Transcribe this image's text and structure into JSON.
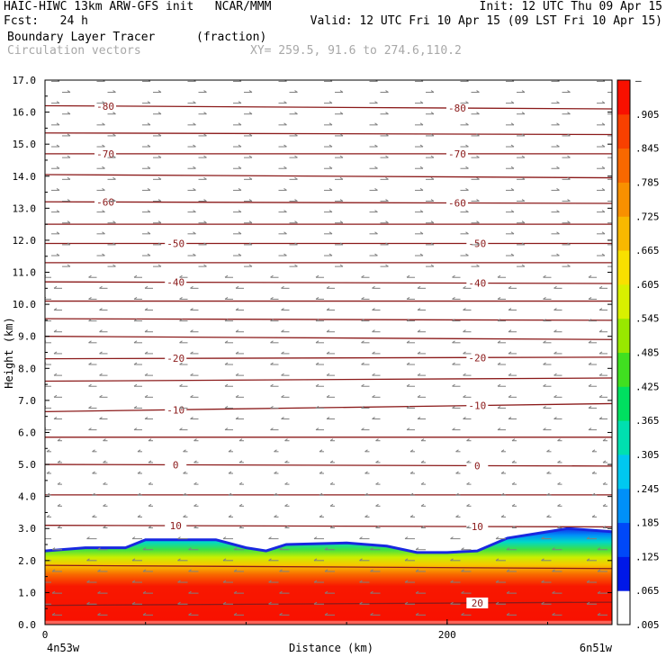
{
  "header": {
    "line1_left": "HAIC-HIWC 13km ARW-GFS init   NCAR/MMM",
    "line1_right": "Init: 12 UTC Thu 09 Apr 15",
    "line2_left": "Fcst:   24 h",
    "line2_right": "Valid: 12 UTC Fri 10 Apr 15 (09 LST Fri 10 Apr 15)",
    "field_name": "Boundary Layer Tracer",
    "field_unit": "(fraction)",
    "overlay_name": "Circulation vectors",
    "xy_text": "XY= 259.5, 91.6 to 274.6,110.2"
  },
  "colors": {
    "contour": "#8b1a1a",
    "vector": "#808080",
    "colorbar": [
      "#ffffff",
      "#0018e8",
      "#0048f8",
      "#0090f8",
      "#00c8f0",
      "#00e0b0",
      "#00e060",
      "#40e020",
      "#98e800",
      "#d8f000",
      "#f8e000",
      "#f8b800",
      "#f89000",
      "#f86800",
      "#f84000",
      "#f81000"
    ]
  },
  "chart_data": {
    "type": "heatmap",
    "title": "Boundary Layer Tracer (fraction)",
    "xlabel": "Distance (km)",
    "ylabel": "Height (km)",
    "xlim": [
      0,
      282
    ],
    "ylim": [
      0,
      17
    ],
    "x_ticks": [
      {
        "v": 0,
        "label": "0"
      },
      {
        "v": 200,
        "label": "200"
      }
    ],
    "x_end_labels": {
      "left": "4n53w",
      "right": "6n51w"
    },
    "y_ticks": [
      {
        "v": 0,
        "label": "0.0"
      },
      {
        "v": 1,
        "label": "1.0"
      },
      {
        "v": 2,
        "label": "2.0"
      },
      {
        "v": 3,
        "label": "3.0"
      },
      {
        "v": 4,
        "label": "4.0"
      },
      {
        "v": 5,
        "label": "5.0"
      },
      {
        "v": 6,
        "label": "6.0"
      },
      {
        "v": 7,
        "label": "7.0"
      },
      {
        "v": 8,
        "label": "8.0"
      },
      {
        "v": 9,
        "label": "9.0"
      },
      {
        "v": 10,
        "label": "10.0"
      },
      {
        "v": 11,
        "label": "11.0"
      },
      {
        "v": 12,
        "label": "12.0"
      },
      {
        "v": 13,
        "label": "13.0"
      },
      {
        "v": 14,
        "label": "14.0"
      },
      {
        "v": 15,
        "label": "15.0"
      },
      {
        "v": 16,
        "label": "16.0"
      },
      {
        "v": 17,
        "label": "17.0"
      }
    ],
    "colorbar_labels": [
      ".005",
      ".065",
      ".125",
      ".185",
      ".245",
      ".305",
      ".365",
      ".425",
      ".485",
      ".545",
      ".605",
      ".665",
      ".725",
      ".785",
      ".845",
      ".905",
      "–"
    ],
    "boundary_layer_top_km": [
      {
        "x": 0,
        "y": 2.3
      },
      {
        "x": 20,
        "y": 2.4
      },
      {
        "x": 40,
        "y": 2.4
      },
      {
        "x": 50,
        "y": 2.65
      },
      {
        "x": 85,
        "y": 2.65
      },
      {
        "x": 100,
        "y": 2.4
      },
      {
        "x": 110,
        "y": 2.3
      },
      {
        "x": 120,
        "y": 2.5
      },
      {
        "x": 150,
        "y": 2.55
      },
      {
        "x": 170,
        "y": 2.45
      },
      {
        "x": 185,
        "y": 2.25
      },
      {
        "x": 200,
        "y": 2.25
      },
      {
        "x": 215,
        "y": 2.3
      },
      {
        "x": 230,
        "y": 2.7
      },
      {
        "x": 245,
        "y": 2.85
      },
      {
        "x": 260,
        "y": 3.0
      },
      {
        "x": 282,
        "y": 2.9
      }
    ],
    "isotherms": [
      {
        "label": "-80",
        "left": 16.2,
        "right": 16.1,
        "label_x": [
          30,
          205
        ]
      },
      {
        "label": "",
        "left": 15.35,
        "right": 15.3
      },
      {
        "label": "-70",
        "left": 14.7,
        "right": 14.7,
        "label_x": [
          30,
          205
        ]
      },
      {
        "label": "",
        "left": 14.05,
        "right": 13.95
      },
      {
        "label": "-60",
        "left": 13.2,
        "right": 13.15,
        "label_x": [
          30,
          205
        ]
      },
      {
        "label": "",
        "left": 12.5,
        "right": 12.5
      },
      {
        "label": "-50",
        "left": 11.9,
        "right": 11.9,
        "label_x": [
          65,
          215
        ]
      },
      {
        "label": "",
        "left": 11.3,
        "right": 11.3
      },
      {
        "label": "-40",
        "left": 10.7,
        "right": 10.65,
        "label_x": [
          65,
          215
        ]
      },
      {
        "label": "",
        "left": 10.1,
        "right": 10.1
      },
      {
        "label": "",
        "left": 9.55,
        "right": 9.5
      },
      {
        "label": "",
        "left": 9.0,
        "right": 8.9
      },
      {
        "label": "-20",
        "left": 8.3,
        "right": 8.35,
        "label_x": [
          65,
          215
        ]
      },
      {
        "label": "",
        "left": 7.6,
        "right": 7.7
      },
      {
        "label": "-10",
        "left": 6.65,
        "right": 6.9,
        "label_x": [
          65,
          215
        ]
      },
      {
        "label": "",
        "left": 5.85,
        "right": 5.85
      },
      {
        "label": "0",
        "left": 5.0,
        "right": 4.95,
        "label_x": [
          65,
          215
        ]
      },
      {
        "label": "",
        "left": 4.05,
        "right": 4.05
      },
      {
        "label": "10",
        "left": 3.1,
        "right": 3.05,
        "label_x": [
          65,
          215
        ]
      },
      {
        "label": "",
        "left": 1.85,
        "right": 1.75
      },
      {
        "label": "20",
        "left": 0.6,
        "right": 0.7,
        "label_x": [
          215
        ]
      }
    ]
  }
}
